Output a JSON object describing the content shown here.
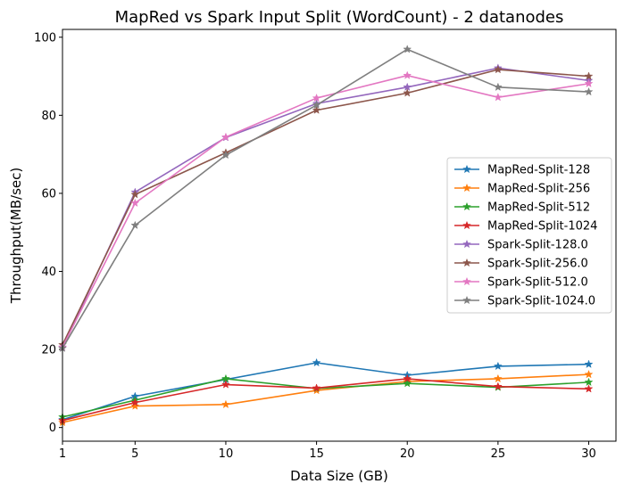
{
  "chart_data": {
    "type": "line",
    "title": "MapRed vs Spark Input Split (WordCount) - 2 datanodes",
    "xlabel": "Data Size (GB)",
    "ylabel": "Throughput(MB/sec)",
    "x": [
      1,
      5,
      10,
      15,
      20,
      25,
      30
    ],
    "x_ticks": [
      1,
      5,
      10,
      15,
      20,
      25,
      30
    ],
    "y_ticks": [
      0,
      20,
      40,
      60,
      80,
      100
    ],
    "xlim": [
      1,
      31.5
    ],
    "ylim": [
      -3.5,
      102
    ],
    "grid": false,
    "legend_position": "center-right",
    "marker": "star",
    "series": [
      {
        "name": "MapRed-Split-128",
        "color": "#1f77b4",
        "values": [
          2.0,
          8.0,
          12.3,
          16.6,
          13.4,
          15.7,
          16.2
        ]
      },
      {
        "name": "MapRed-Split-256",
        "color": "#ff7f0e",
        "values": [
          1.3,
          5.5,
          5.9,
          9.5,
          11.8,
          12.5,
          13.6
        ]
      },
      {
        "name": "MapRed-Split-512",
        "color": "#2ca02c",
        "values": [
          2.7,
          7.0,
          12.5,
          10.0,
          11.3,
          10.3,
          11.6
        ]
      },
      {
        "name": "MapRed-Split-1024",
        "color": "#d62728",
        "values": [
          1.8,
          6.4,
          11.0,
          10.1,
          12.5,
          10.5,
          9.9
        ]
      },
      {
        "name": "Spark-Split-128.0",
        "color": "#9467bd",
        "values": [
          20.5,
          60.3,
          74.3,
          83.0,
          87.2,
          92.1,
          88.9
        ]
      },
      {
        "name": "Spark-Split-256.0",
        "color": "#8c564b",
        "values": [
          21.2,
          59.7,
          70.4,
          81.3,
          85.7,
          91.7,
          90.0
        ]
      },
      {
        "name": "Spark-Split-512.0",
        "color": "#e377c2",
        "values": [
          20.6,
          57.5,
          74.4,
          84.4,
          90.2,
          84.6,
          88.1
        ]
      },
      {
        "name": "Spark-Split-1024.0",
        "color": "#7f7f7f",
        "values": [
          20.3,
          51.8,
          69.8,
          82.6,
          96.9,
          87.2,
          86.0
        ]
      }
    ]
  }
}
